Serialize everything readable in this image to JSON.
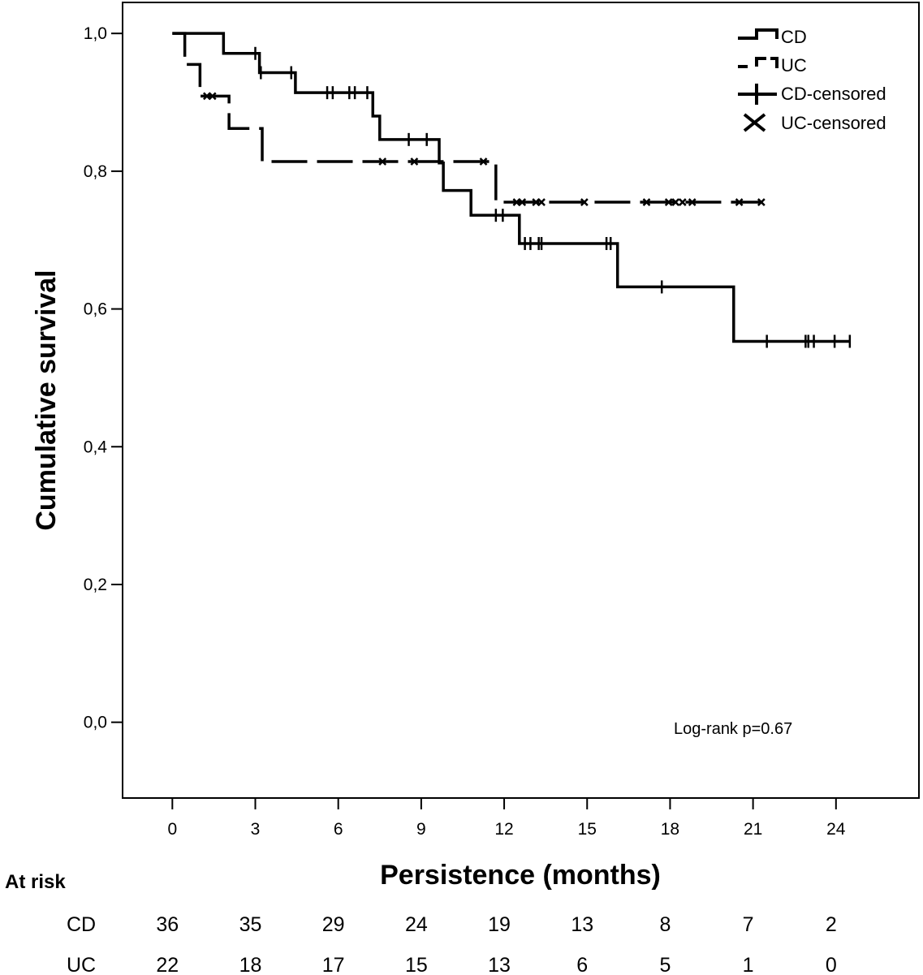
{
  "chart_data": {
    "type": "line",
    "subtype": "kaplan-meier",
    "xlabel": "Persistence (months)",
    "ylabel": "Cumulative survival",
    "xlim": [
      -1.8,
      27
    ],
    "ylim": [
      -0.11,
      1.045
    ],
    "x_ticks": [
      0,
      3,
      6,
      9,
      12,
      15,
      18,
      21,
      24
    ],
    "x_tick_labels": [
      "0",
      "3",
      "6",
      "9",
      "12",
      "15",
      "18",
      "21",
      "24"
    ],
    "y_ticks": [
      0.0,
      0.2,
      0.4,
      0.6,
      0.8,
      1.0
    ],
    "y_tick_labels": [
      "0,0",
      "0,2",
      "0,4",
      "0,6",
      "0,8",
      "1,0"
    ],
    "grid": false,
    "legend_position": "top-right",
    "legend": [
      "CD",
      "UC",
      "CD-censored",
      "UC-censored"
    ],
    "series": [
      {
        "name": "CD",
        "line_style": "solid",
        "step_points": [
          [
            0,
            1.0
          ],
          [
            1.85,
            0.971
          ],
          [
            3.15,
            0.943
          ],
          [
            4.45,
            0.914
          ],
          [
            7.25,
            0.88
          ],
          [
            7.5,
            0.846
          ],
          [
            9.65,
            0.812
          ],
          [
            9.8,
            0.772
          ],
          [
            10.8,
            0.736
          ],
          [
            12.55,
            0.695
          ],
          [
            16.1,
            0.632
          ],
          [
            20.3,
            0.553
          ],
          [
            24.5,
            0.553
          ]
        ],
        "censored_x": [
          3.0,
          3.2,
          4.3,
          5.6,
          5.8,
          6.4,
          6.6,
          7.05,
          8.55,
          9.2,
          11.7,
          11.95,
          12.75,
          12.95,
          13.25,
          13.35,
          15.7,
          15.85,
          17.7,
          21.5,
          22.9,
          23.0,
          23.2,
          23.95,
          24.5
        ]
      },
      {
        "name": "UC",
        "line_style": "dashed",
        "step_points": [
          [
            0,
            1.0
          ],
          [
            0.45,
            0.955
          ],
          [
            1.0,
            0.909
          ],
          [
            2.05,
            0.862
          ],
          [
            3.25,
            0.814
          ],
          [
            11.7,
            0.755
          ],
          [
            21.3,
            0.755
          ]
        ],
        "censored_x": [
          1.25,
          1.45,
          7.6,
          8.75,
          11.25,
          12.45,
          12.65,
          13.15,
          13.35,
          14.9,
          17.15,
          17.95,
          18.2,
          18.45,
          18.8,
          20.5,
          21.3
        ]
      }
    ],
    "annotations": [
      "Log-rank p=0.67"
    ],
    "at_risk": {
      "title": "At risk",
      "times": [
        0,
        3,
        6,
        9,
        12,
        15,
        18,
        21,
        24
      ],
      "rows": [
        {
          "label": "CD",
          "values": [
            36,
            35,
            29,
            24,
            19,
            13,
            8,
            7,
            2
          ]
        },
        {
          "label": "UC",
          "values": [
            22,
            18,
            17,
            15,
            13,
            6,
            5,
            1,
            0
          ]
        }
      ]
    }
  }
}
